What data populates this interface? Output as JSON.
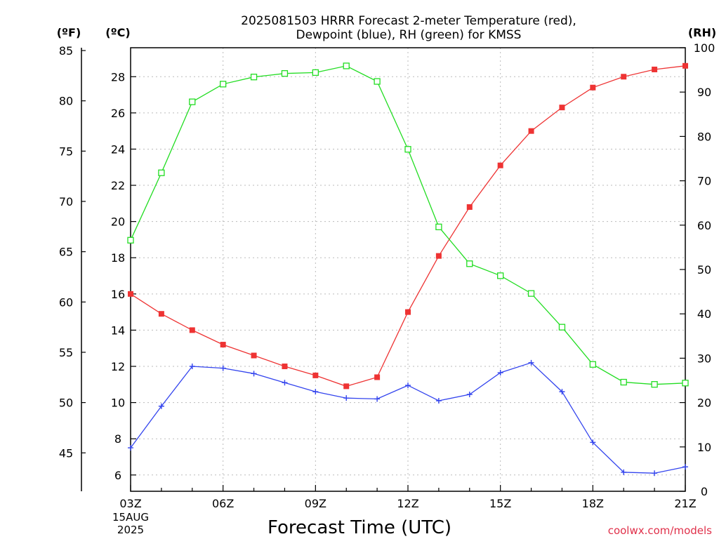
{
  "title": {
    "line1": "2025081503 HRRR Forecast 2-meter Temperature (red),",
    "line2": "Dewpoint (blue), RH (green) for KMSS"
  },
  "axis_units": {
    "fahrenheit": "(ºF)",
    "celsius": "(ºC)",
    "rh": "(RH)"
  },
  "xlabel": "Forecast Time (UTC)",
  "date_label": {
    "day": "15AUG",
    "year": "2025"
  },
  "credit": "coolwx.com/models",
  "colors": {
    "temperature": "#ee3333",
    "dewpoint": "#3344ee",
    "rh": "#22dd22",
    "grid": "#bbbbbb"
  },
  "chart_data": {
    "type": "line",
    "x": [
      "03Z",
      "04Z",
      "05Z",
      "06Z",
      "07Z",
      "08Z",
      "09Z",
      "10Z",
      "11Z",
      "12Z",
      "13Z",
      "14Z",
      "15Z",
      "16Z",
      "17Z",
      "18Z",
      "19Z",
      "20Z",
      "21Z"
    ],
    "x_tick_labels": [
      "03Z",
      "06Z",
      "09Z",
      "12Z",
      "15Z",
      "18Z",
      "21Z"
    ],
    "y_celsius": {
      "ylim": [
        5.1,
        29.6
      ],
      "ticks": [
        6,
        8,
        10,
        12,
        14,
        16,
        18,
        20,
        22,
        24,
        26,
        28
      ]
    },
    "y_fahrenheit": {
      "ticks": [
        45,
        50,
        55,
        60,
        65,
        70,
        75,
        80,
        85
      ]
    },
    "y_rh": {
      "ylim": [
        0,
        100
      ],
      "ticks": [
        0,
        10,
        20,
        30,
        40,
        50,
        60,
        70,
        80,
        90,
        100
      ]
    },
    "grid": true,
    "series": [
      {
        "name": "Temperature",
        "axis": "celsius",
        "marker": "filled-square",
        "values": [
          16.0,
          14.9,
          14.0,
          13.2,
          12.6,
          12.0,
          11.5,
          10.9,
          11.4,
          15.0,
          18.1,
          20.8,
          23.1,
          25.0,
          26.3,
          27.4,
          28.0,
          28.4,
          28.6
        ]
      },
      {
        "name": "Dewpoint",
        "axis": "celsius",
        "marker": "plus",
        "values": [
          7.5,
          9.8,
          12.0,
          11.9,
          11.6,
          11.1,
          10.6,
          10.25,
          10.2,
          10.95,
          10.1,
          10.45,
          11.65,
          12.2,
          10.6,
          7.8,
          6.15,
          6.1,
          6.45
        ]
      },
      {
        "name": "RH",
        "axis": "rh",
        "marker": "open-square",
        "values": [
          56.6,
          71.8,
          87.8,
          91.8,
          93.4,
          94.2,
          94.4,
          95.9,
          92.4,
          77.1,
          59.6,
          51.3,
          48.6,
          44.6,
          37.0,
          28.6,
          24.6,
          24.1,
          24.4
        ]
      }
    ]
  }
}
